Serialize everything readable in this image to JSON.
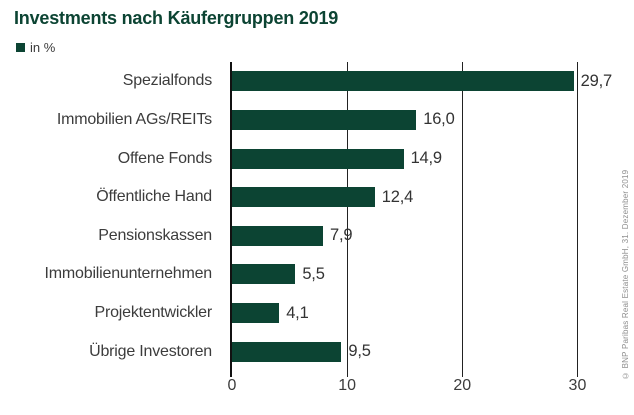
{
  "title": "Investments nach Käufergruppen 2019",
  "legend": {
    "label": "in %"
  },
  "source_note": "© BNP Paribas Real Estate GmbH, 31. Dezember 2019",
  "colors": {
    "bar": "#0c4433",
    "title": "#0c4433",
    "text": "#3c3c3c",
    "axis": "#111111",
    "gridline": "#222222",
    "source": "#8f8f8f"
  },
  "chart_data": {
    "type": "bar",
    "orientation": "horizontal",
    "title": "Investments nach Käufergruppen 2019",
    "unit_label": "in %",
    "categories": [
      "Spezialfonds",
      "Immobilien AGs/REITs",
      "Offene Fonds",
      "Öffentliche Hand",
      "Pensionskassen",
      "Immobilienunternehmen",
      "Projektentwickler",
      "Übrige Investoren"
    ],
    "values": [
      29.7,
      16.0,
      14.9,
      12.4,
      7.9,
      5.5,
      4.1,
      9.5
    ],
    "value_labels": [
      "29,7",
      "16,0",
      "14,9",
      "12,4",
      "7,9",
      "5,5",
      "4,1",
      "9,5"
    ],
    "x_ticks": [
      0,
      10,
      20,
      30
    ],
    "x_tick_labels": [
      "0",
      "10",
      "20",
      "30"
    ],
    "xlim": [
      0,
      33
    ],
    "grid": true,
    "legend_position": "top-left",
    "source": "© BNP Paribas Real Estate GmbH, 31. Dezember 2019"
  }
}
